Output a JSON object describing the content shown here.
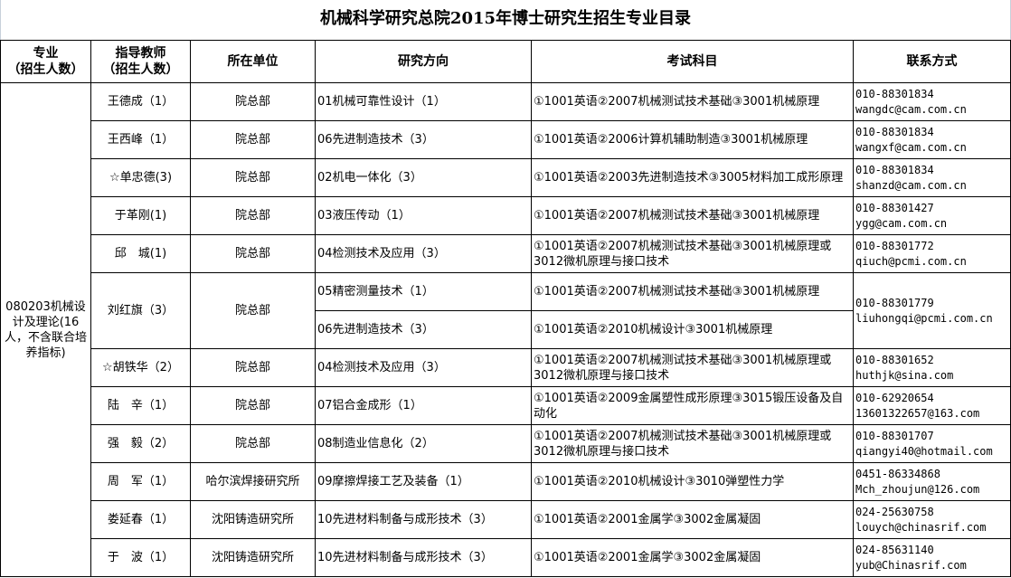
{
  "title": "机械科学研究总院2015年博士研究生招生专业目录",
  "headers": {
    "major": [
      "专业",
      "（招生人数）"
    ],
    "advisor": [
      "指导教师",
      "（招生人数）"
    ],
    "unit": "所在单位",
    "direction": "研究方向",
    "exam": "考试科目",
    "contact": "联系方式"
  },
  "major": "080203机械设计及理论(16人，不含联合培养指标)",
  "rows": [
    {
      "advisor": "王德成（1）",
      "unit": "院总部",
      "directions": [
        "01机械可靠性设计（1）"
      ],
      "exams": [
        "①1001英语②2007机械测试技术基础③3001机械原理"
      ],
      "phone": "010-88301834",
      "email": "wangdc@cam.com.cn"
    },
    {
      "advisor": "王西峰（1）",
      "unit": "院总部",
      "directions": [
        "06先进制造技术（3）"
      ],
      "exams": [
        "①1001英语②2006计算机辅助制造③3001机械原理"
      ],
      "phone": "010-88301834",
      "email": "wangxf@cam.com.cn"
    },
    {
      "advisor": "☆单忠德(3)",
      "unit": "院总部",
      "directions": [
        "02机电一体化（3）"
      ],
      "exams": [
        "①1001英语②2003先进制造技术③3005材料加工成形原理"
      ],
      "phone": "010-88301834",
      "email": "shanzd@cam.com.cn"
    },
    {
      "advisor": "于革刚(1)",
      "unit": "院总部",
      "directions": [
        "03液压传动（1）"
      ],
      "exams": [
        "①1001英语②2007机械测试技术基础③3001机械原理"
      ],
      "phone": "010-88301427",
      "email": "ygg@cam.com.cn"
    },
    {
      "advisor": "邱　城(1)",
      "unit": "院总部",
      "directions": [
        "04检测技术及应用（3）"
      ],
      "exams": [
        "①1001英语②2007机械测试技术基础③3001机械原理或3012微机原理与接口技术"
      ],
      "phone": "010-88301772",
      "email": "qiuch@pcmi.com.cn"
    },
    {
      "advisor": "刘红旗（3）",
      "unit": "院总部",
      "directions": [
        "05精密测量技术（1）",
        "06先进制造技术（3）"
      ],
      "exams": [
        "①1001英语②2007机械测试技术基础③3001机械原理",
        "①1001英语②2010机械设计③3001机械原理"
      ],
      "phone": "010-88301779",
      "email": "liuhongqi@pcmi.com.cn"
    },
    {
      "advisor": "☆胡铁华（2）",
      "unit": "院总部",
      "directions": [
        "04检测技术及应用（3）"
      ],
      "exams": [
        "①1001英语②2007机械测试技术基础③3001机械原理或3012微机原理与接口技术"
      ],
      "phone": "010-88301652",
      "email": "huthjk@sina.com"
    },
    {
      "advisor": "陆　辛（1）",
      "unit": "院总部",
      "directions": [
        "07铝合金成形（1）"
      ],
      "exams": [
        "①1001英语②2009金属塑性成形原理③3015锻压设备及自动化"
      ],
      "phone": "010-62920654",
      "email": "13601322657@163.com"
    },
    {
      "advisor": "强　毅（2）",
      "unit": "院总部",
      "directions": [
        "08制造业信息化（2）"
      ],
      "exams": [
        "①1001英语②2007机械测试技术基础③3001机械原理或3012微机原理与接口技术"
      ],
      "phone": "010-88301707",
      "email": "qiangyi40@hotmail.com"
    },
    {
      "advisor": "周　军（1）",
      "unit": "哈尔滨焊接研究所",
      "directions": [
        "09摩擦焊接工艺及装备（1）"
      ],
      "exams": [
        "①1001英语②2010机械设计③3010弹塑性力学"
      ],
      "phone": "0451-86334868",
      "email": "Mch_zhoujun@126.com"
    },
    {
      "advisor": "娄延春（1）",
      "unit": "沈阳铸造研究所",
      "directions": [
        "10先进材料制备与成形技术（3）"
      ],
      "exams": [
        "①1001英语②2001金属学③3002金属凝固"
      ],
      "phone": "024-25630758",
      "email": "louych@chinasrif.com"
    },
    {
      "advisor": "于　波（1）",
      "unit": "沈阳铸造研究所",
      "directions": [
        "10先进材料制备与成形技术（3）"
      ],
      "exams": [
        "①1001英语②2001金属学③3002金属凝固"
      ],
      "phone": "024-85631140",
      "email": "yub@Chinasrif.com"
    }
  ]
}
